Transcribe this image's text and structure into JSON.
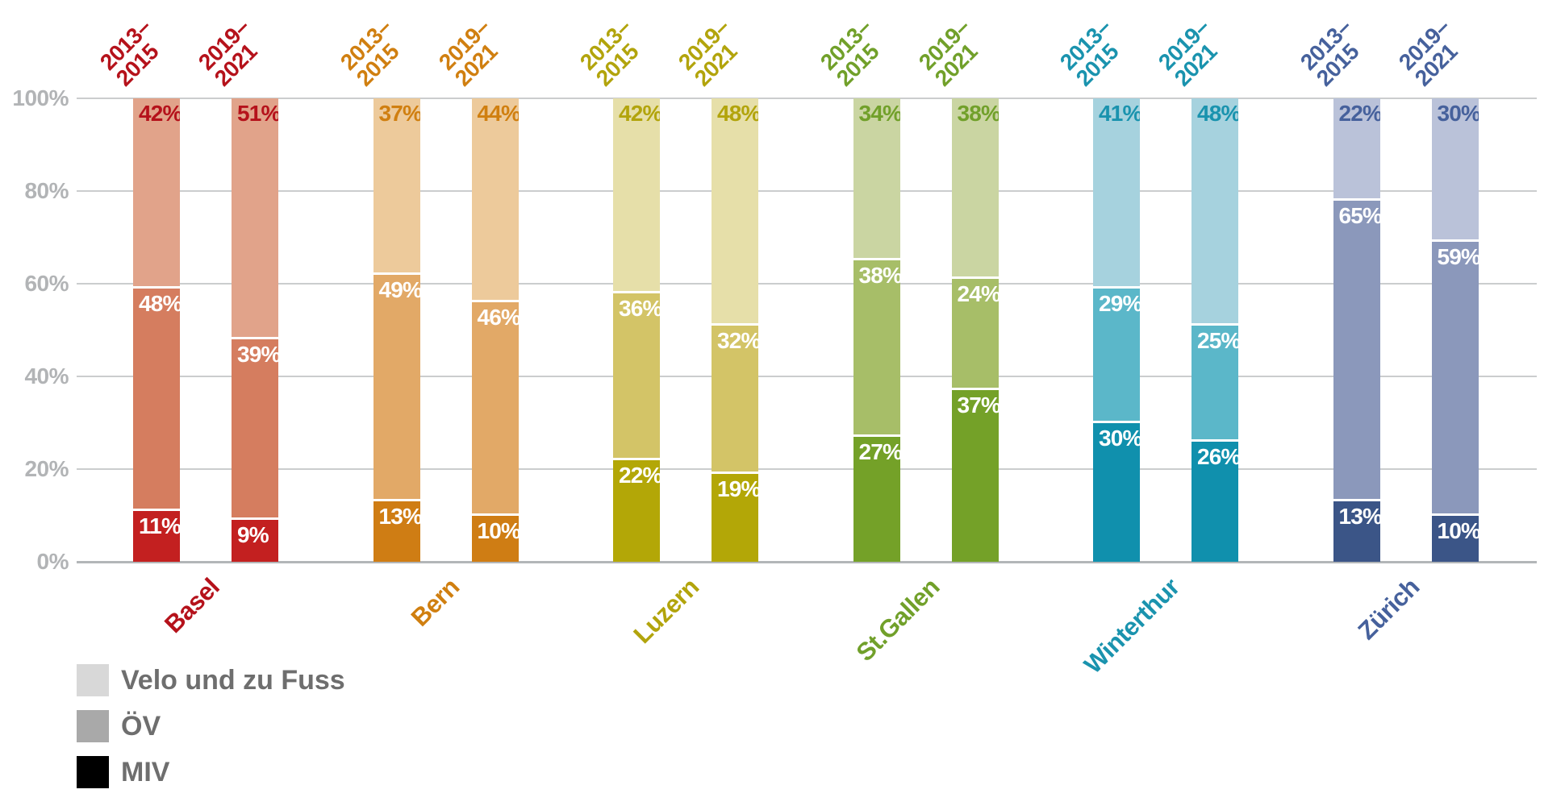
{
  "chart_data": {
    "type": "bar",
    "stacked": true,
    "unit": "%",
    "ylim": [
      0,
      100
    ],
    "grid": true,
    "legend_position": "bottom-left",
    "series_top_to_bottom": [
      "Velo und zu Fuss",
      "ÖV",
      "MIV"
    ],
    "periods": [
      {
        "id": "2013–2015",
        "line1": "2013–",
        "line2": "2015"
      },
      {
        "id": "2019–2021",
        "line1": "2019–",
        "line2": "2021"
      }
    ],
    "yticks": [
      {
        "value": 100,
        "label": "100%"
      },
      {
        "value": 80,
        "label": "80%"
      },
      {
        "value": 60,
        "label": "60%"
      },
      {
        "value": 40,
        "label": "40%"
      },
      {
        "value": 20,
        "label": "20%"
      },
      {
        "value": 0,
        "label": "0%"
      }
    ],
    "cities": [
      {
        "name": "Basel",
        "colors": {
          "label": "#b5121b",
          "velo": "#e1a38a",
          "oev": "#d57d5f",
          "miv": "#c32020"
        },
        "bars": [
          {
            "period": "2013–2015",
            "values": {
              "velo": 42,
              "oev": 48,
              "miv": 11
            },
            "labels": {
              "velo": "42%",
              "oev": "48%",
              "miv": "11%"
            }
          },
          {
            "period": "2019–2021",
            "values": {
              "velo": 51,
              "oev": 39,
              "miv": 9
            },
            "labels": {
              "velo": "51%",
              "oev": "39%",
              "miv": "9%"
            }
          }
        ]
      },
      {
        "name": "Bern",
        "colors": {
          "label": "#d07f10",
          "velo": "#edca9b",
          "oev": "#e2a967",
          "miv": "#cf7d14"
        },
        "bars": [
          {
            "period": "2013–2015",
            "values": {
              "velo": 37,
              "oev": 49,
              "miv": 13
            },
            "labels": {
              "velo": "37%",
              "oev": "49%",
              "miv": "13%"
            }
          },
          {
            "period": "2019–2021",
            "values": {
              "velo": 44,
              "oev": 46,
              "miv": 10
            },
            "labels": {
              "velo": "44%",
              "oev": "46%",
              "miv": "10%"
            }
          }
        ]
      },
      {
        "name": "Luzern",
        "colors": {
          "label": "#b2a40c",
          "velo": "#e6dfa9",
          "oev": "#d3c467",
          "miv": "#b3a707"
        },
        "bars": [
          {
            "period": "2013–2015",
            "values": {
              "velo": 42,
              "oev": 36,
              "miv": 22
            },
            "labels": {
              "velo": "42%",
              "oev": "36%",
              "miv": "22%"
            }
          },
          {
            "period": "2019–2021",
            "values": {
              "velo": 48,
              "oev": 32,
              "miv": 19
            },
            "labels": {
              "velo": "48%",
              "oev": "32%",
              "miv": "19%"
            }
          }
        ]
      },
      {
        "name": "St.Gallen",
        "colors": {
          "label": "#71a02a",
          "velo": "#cad5a2",
          "oev": "#a7be68",
          "miv": "#74a128"
        },
        "bars": [
          {
            "period": "2013–2015",
            "values": {
              "velo": 34,
              "oev": 38,
              "miv": 27
            },
            "labels": {
              "velo": "34%",
              "oev": "38%",
              "miv": "27%"
            }
          },
          {
            "period": "2019–2021",
            "values": {
              "velo": 38,
              "oev": 24,
              "miv": 37
            },
            "labels": {
              "velo": "38%",
              "oev": "24%",
              "miv": "37%"
            }
          }
        ]
      },
      {
        "name": "Winterthur",
        "colors": {
          "label": "#1a93ae",
          "velo": "#a6d2de",
          "oev": "#5bb7c9",
          "miv": "#1090ad"
        },
        "bars": [
          {
            "period": "2013–2015",
            "values": {
              "velo": 41,
              "oev": 29,
              "miv": 30
            },
            "labels": {
              "velo": "41%",
              "oev": "29%",
              "miv": "30%"
            }
          },
          {
            "period": "2019–2021",
            "values": {
              "velo": 48,
              "oev": 25,
              "miv": 26
            },
            "labels": {
              "velo": "48%",
              "oev": "25%",
              "miv": "26%"
            }
          }
        ]
      },
      {
        "name": "Zürich",
        "colors": {
          "label": "#46619c",
          "velo": "#bac2d9",
          "oev": "#8b98bb",
          "miv": "#3b5587"
        },
        "bars": [
          {
            "period": "2013–2015",
            "values": {
              "velo": 22,
              "oev": 65,
              "miv": 13
            },
            "labels": {
              "velo": "22%",
              "oev": "65%",
              "miv": "13%"
            }
          },
          {
            "period": "2019–2021",
            "values": {
              "velo": 30,
              "oev": 59,
              "miv": 10
            },
            "labels": {
              "velo": "30%",
              "oev": "59%",
              "miv": "10%"
            }
          }
        ]
      }
    ],
    "legend": [
      {
        "label": "Velo und zu Fuss",
        "swatch": "#d8d8d8"
      },
      {
        "label": "ÖV",
        "swatch": "#a9a9a9"
      },
      {
        "label": "MIV",
        "swatch": "#000000"
      }
    ]
  }
}
